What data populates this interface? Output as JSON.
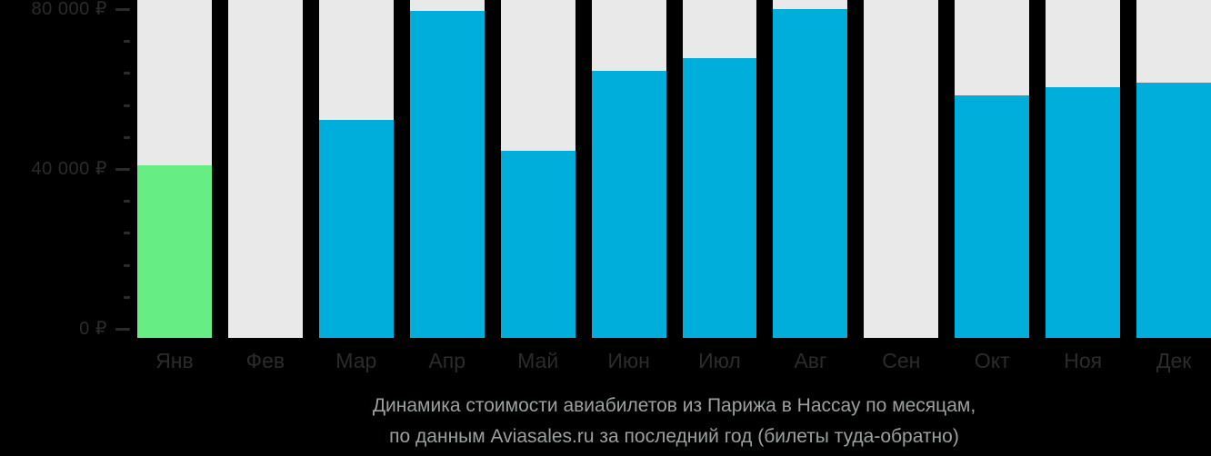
{
  "background_color": "#000000",
  "colors": {
    "bar_default": "#00aedc",
    "bar_highlight": "#66ee85",
    "bar_track": "#e9e9e9",
    "axis_text": "#2b2b2b",
    "title_text": "#9ba1a1"
  },
  "y_axis": {
    "major_ticks": [
      {
        "value": 80000,
        "label": "80 000 ₽"
      },
      {
        "value": 40000,
        "label": "40 000 ₽"
      },
      {
        "value": 0,
        "label": "0 ₽"
      }
    ],
    "minor_tick_step": 8000,
    "currency_symbol": "₽"
  },
  "title": {
    "line1": "Динамика стоимости авиабилетов из Парижа в Нассау по месяцам,",
    "line2": "по данным Aviasales.ru за последний год (билеты туда-обратно)"
  },
  "chart_data": {
    "type": "bar",
    "title": "Динамика стоимости авиабилетов из Парижа в Нассау по месяцам, по данным Aviasales.ru за последний год (билеты туда-обратно)",
    "categories": [
      "Янв",
      "Фев",
      "Мар",
      "Апр",
      "Май",
      "Июн",
      "Июл",
      "Авг",
      "Сен",
      "Окт",
      "Ноя",
      "Дек"
    ],
    "values": [
      42000,
      null,
      53000,
      79500,
      45500,
      65000,
      68000,
      80000,
      null,
      59000,
      61000,
      62000
    ],
    "no_data_categories": [
      "Фев",
      "Сен"
    ],
    "highlight_index": 0,
    "highlight_meaning": "cheapest-month",
    "ylim": [
      0,
      80000
    ],
    "grid": false,
    "legend": false
  }
}
